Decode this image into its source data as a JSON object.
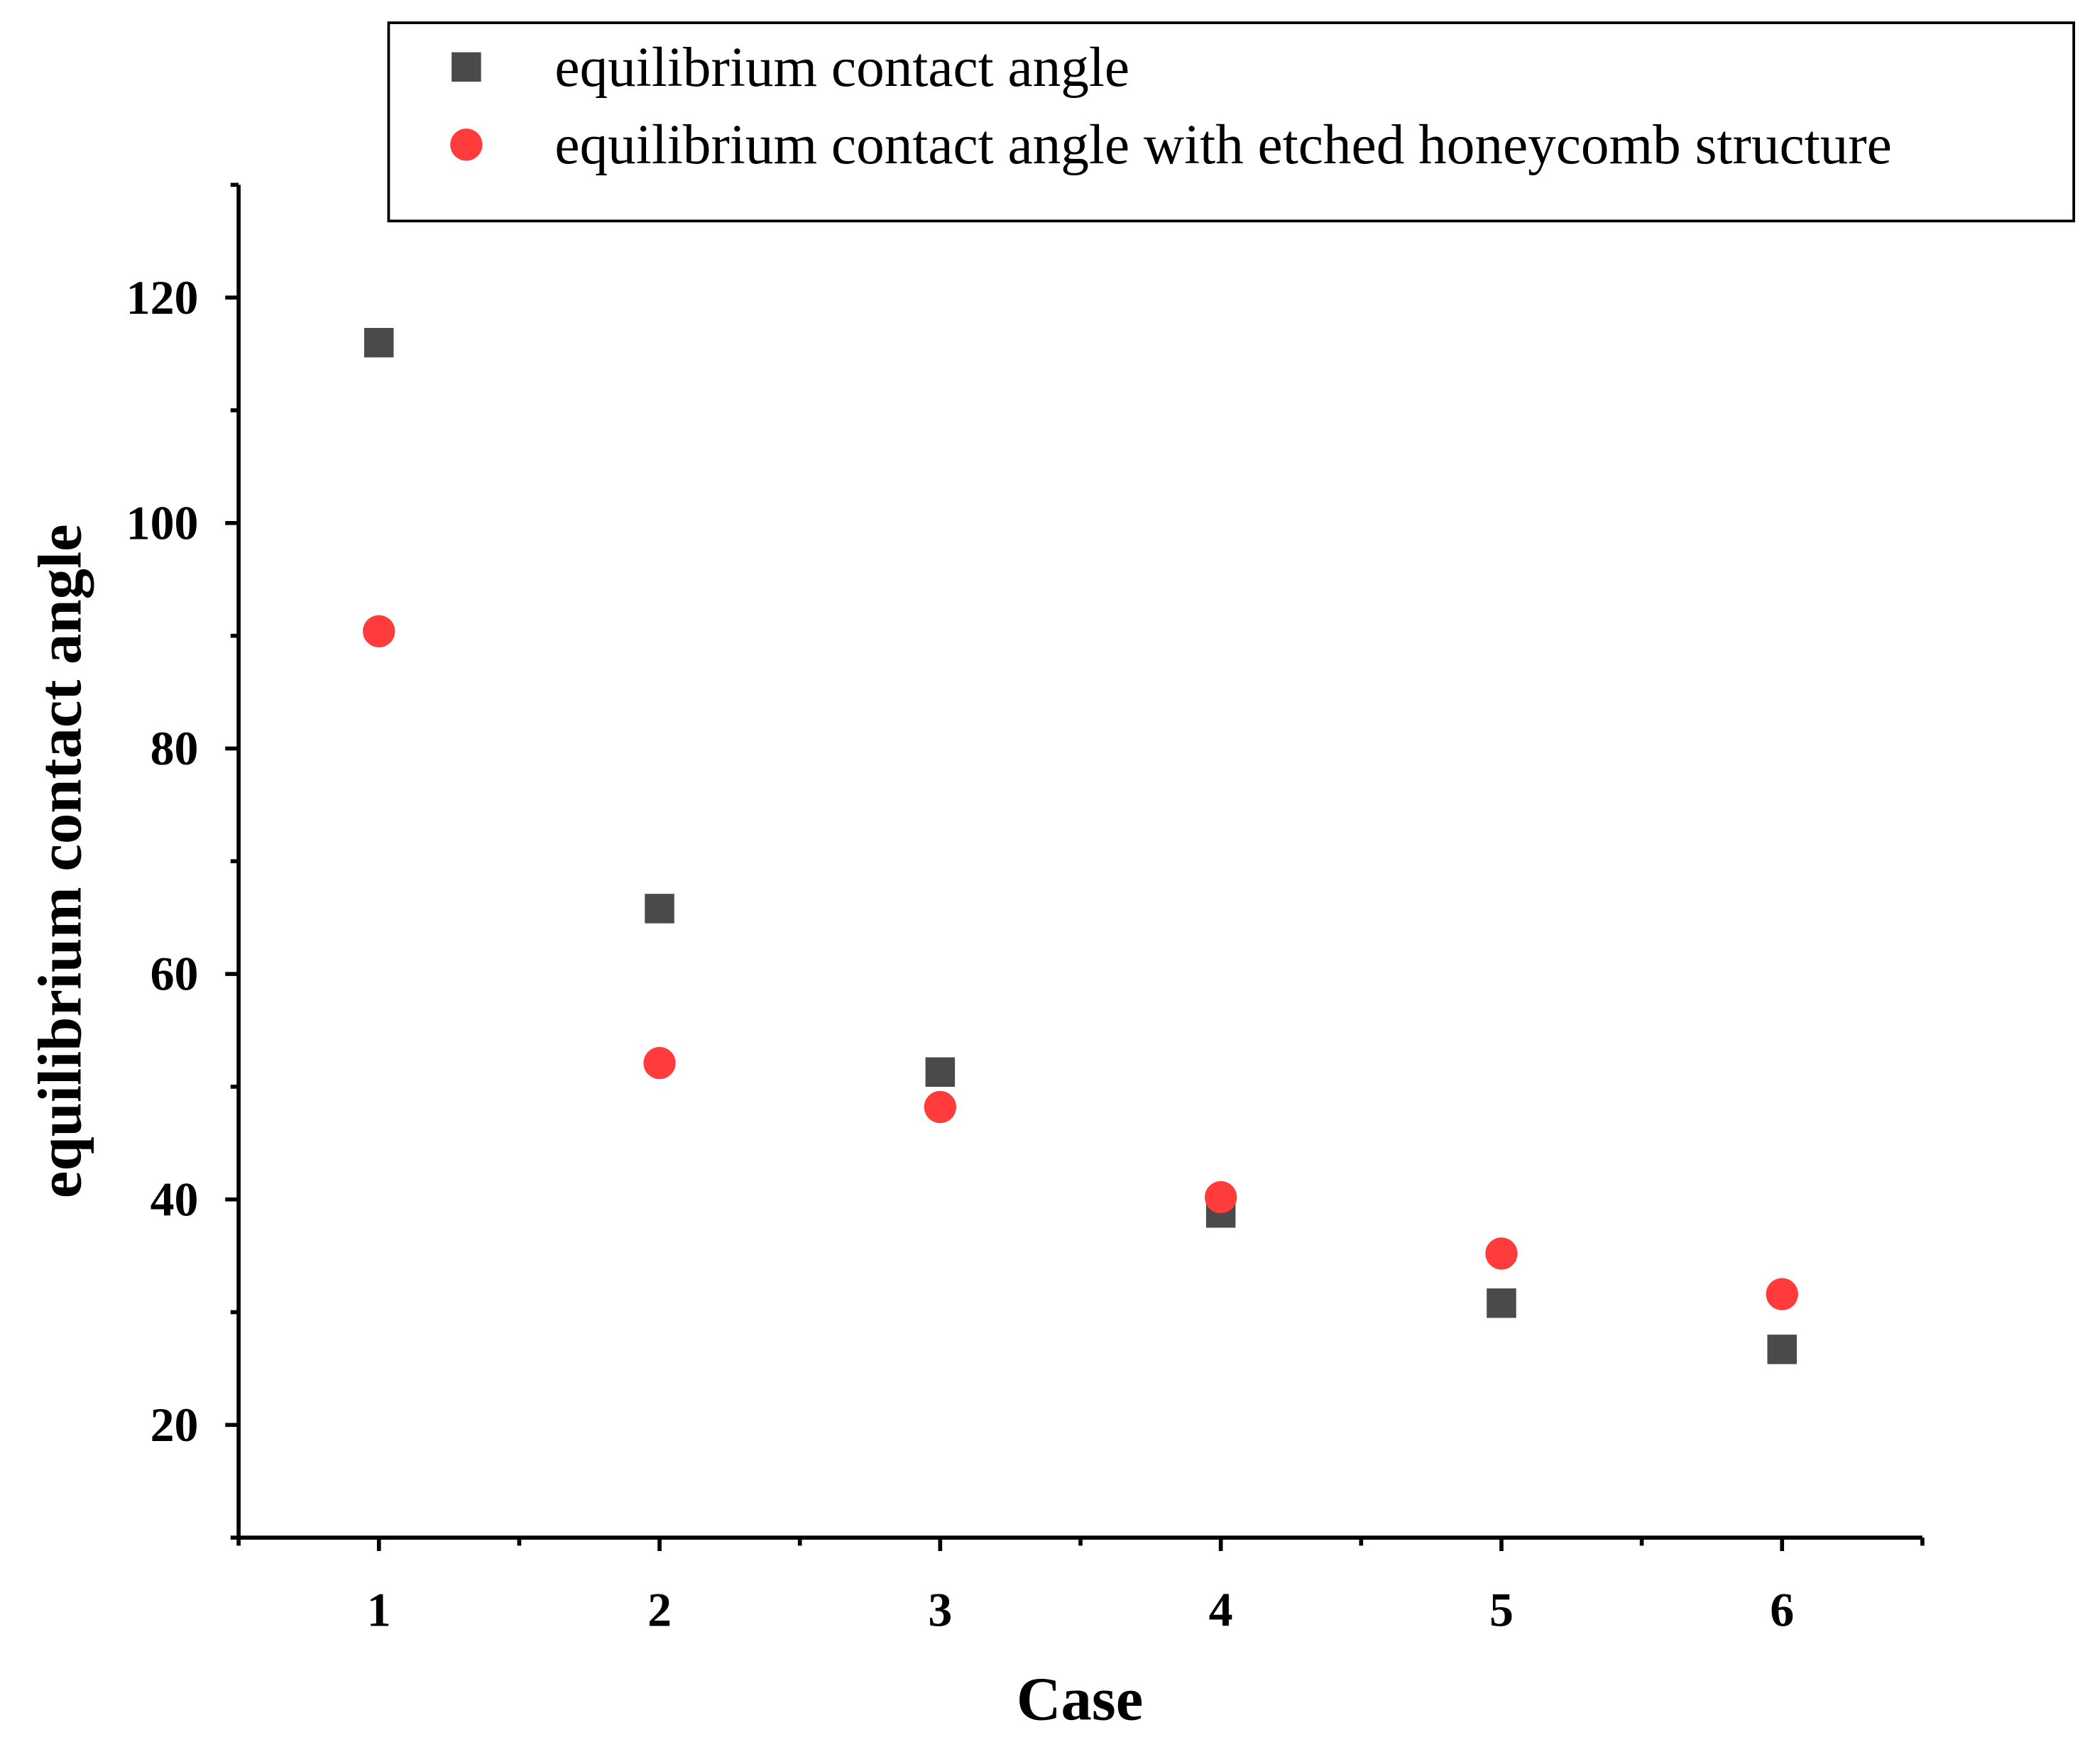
{
  "chart_data": {
    "type": "scatter",
    "x_label": "Case",
    "y_label": "equilibrium contact angle",
    "x": [
      1,
      2,
      3,
      4,
      5,
      6
    ],
    "series": [
      {
        "name": "equilibrium contact angle",
        "color": "#4a4a4a",
        "marker": "square",
        "values": [
          116,
          65.8,
          51.3,
          38.8,
          30.8,
          26.7
        ]
      },
      {
        "name": "equilibrium contact angle with etched honeycomb structure",
        "color": "#ff3b3b",
        "marker": "circle",
        "values": [
          90.4,
          52.1,
          48.2,
          40.2,
          35.2,
          31.6
        ]
      }
    ],
    "xlim": [
      0.5,
      6.5
    ],
    "xticks": [
      1,
      2,
      3,
      4,
      5,
      6
    ],
    "ylim": [
      10,
      130
    ],
    "yticks": [
      20,
      40,
      60,
      80,
      100,
      120
    ],
    "grid": false,
    "legend": "top-right"
  }
}
